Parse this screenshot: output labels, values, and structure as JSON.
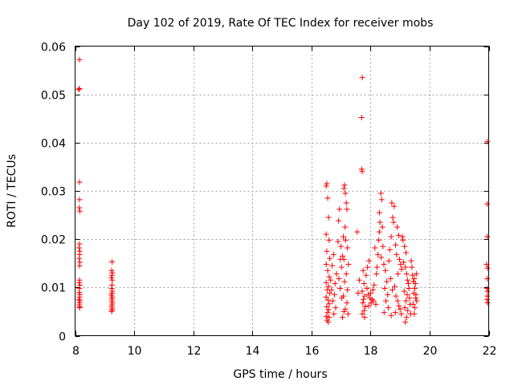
{
  "colors": {
    "marker": "#ff0000",
    "grid": "#a0a0a0",
    "axis": "#000000"
  },
  "chart_data": {
    "type": "scatter",
    "title": "Day 102 of 2019, Rate Of TEC Index for receiver mobs",
    "xlabel": "GPS time / hours",
    "ylabel": "ROTI / TECUs",
    "xlim": [
      8,
      22
    ],
    "ylim": [
      0,
      0.06
    ],
    "grid": true,
    "marker": "+",
    "xticks": [
      8,
      10,
      12,
      14,
      16,
      18,
      20,
      22
    ],
    "xtick_labels": [
      "8",
      "10",
      "12",
      "14",
      "16",
      "18",
      "20",
      "22"
    ],
    "yticks": [
      0,
      0.01,
      0.02,
      0.03,
      0.04,
      0.05,
      0.06
    ],
    "ytick_labels": [
      "0",
      "0.01",
      "0.02",
      "0.03",
      "0.04",
      "0.05",
      "0.06"
    ],
    "points": [
      [
        8.15,
        0.0572
      ],
      [
        8.15,
        0.0512
      ],
      [
        8.12,
        0.051
      ],
      [
        8.15,
        0.0318
      ],
      [
        8.15,
        0.0282
      ],
      [
        8.14,
        0.0265
      ],
      [
        8.16,
        0.0258
      ],
      [
        8.15,
        0.019
      ],
      [
        8.13,
        0.0182
      ],
      [
        8.16,
        0.0175
      ],
      [
        8.15,
        0.0168
      ],
      [
        8.14,
        0.016
      ],
      [
        8.16,
        0.0152
      ],
      [
        8.15,
        0.0145
      ],
      [
        8.15,
        0.0115
      ],
      [
        8.14,
        0.011
      ],
      [
        8.16,
        0.0105
      ],
      [
        8.15,
        0.0098
      ],
      [
        8.14,
        0.009
      ],
      [
        8.16,
        0.0085
      ],
      [
        8.15,
        0.008
      ],
      [
        8.13,
        0.0075
      ],
      [
        8.16,
        0.0072
      ],
      [
        8.15,
        0.0068
      ],
      [
        8.14,
        0.0064
      ],
      [
        8.16,
        0.006
      ],
      [
        8.15,
        0.0058
      ],
      [
        9.25,
        0.0153
      ],
      [
        9.24,
        0.0135
      ],
      [
        9.26,
        0.013
      ],
      [
        9.25,
        0.0125
      ],
      [
        9.23,
        0.012
      ],
      [
        9.26,
        0.0115
      ],
      [
        9.25,
        0.0105
      ],
      [
        9.24,
        0.0098
      ],
      [
        9.26,
        0.0092
      ],
      [
        9.25,
        0.0088
      ],
      [
        9.23,
        0.0084
      ],
      [
        9.26,
        0.008
      ],
      [
        9.25,
        0.0076
      ],
      [
        9.24,
        0.0072
      ],
      [
        9.26,
        0.0068
      ],
      [
        9.25,
        0.0064
      ],
      [
        9.24,
        0.006
      ],
      [
        9.26,
        0.0056
      ],
      [
        9.25,
        0.0053
      ],
      [
        9.24,
        0.005
      ],
      [
        16.5,
        0.031
      ],
      [
        16.52,
        0.0315
      ],
      [
        16.55,
        0.0285
      ],
      [
        16.58,
        0.0245
      ],
      [
        16.5,
        0.021
      ],
      [
        16.6,
        0.0198
      ],
      [
        16.52,
        0.0175
      ],
      [
        16.62,
        0.016
      ],
      [
        16.5,
        0.0148
      ],
      [
        16.55,
        0.0135
      ],
      [
        16.6,
        0.0122
      ],
      [
        16.5,
        0.011
      ],
      [
        16.58,
        0.0102
      ],
      [
        16.53,
        0.0095
      ],
      [
        16.62,
        0.0088
      ],
      [
        16.5,
        0.008
      ],
      [
        16.56,
        0.0074
      ],
      [
        16.6,
        0.0066
      ],
      [
        16.52,
        0.006
      ],
      [
        16.58,
        0.0054
      ],
      [
        16.55,
        0.0048
      ],
      [
        16.5,
        0.004
      ],
      [
        16.53,
        0.0032
      ],
      [
        16.57,
        0.0028
      ],
      [
        16.6,
        0.0038
      ],
      [
        16.65,
        0.0115
      ],
      [
        16.7,
        0.0145
      ],
      [
        16.75,
        0.0168
      ],
      [
        16.68,
        0.0095
      ],
      [
        16.72,
        0.0072
      ],
      [
        16.8,
        0.0108
      ],
      [
        16.85,
        0.0128
      ],
      [
        16.78,
        0.0085
      ],
      [
        16.82,
        0.0058
      ],
      [
        16.76,
        0.0045
      ],
      [
        16.9,
        0.0195
      ],
      [
        16.92,
        0.0238
      ],
      [
        16.95,
        0.0262
      ],
      [
        16.98,
        0.0158
      ],
      [
        16.93,
        0.0118
      ],
      [
        17.0,
        0.0185
      ],
      [
        17.02,
        0.0142
      ],
      [
        16.97,
        0.0098
      ],
      [
        17.05,
        0.0165
      ],
      [
        17.03,
        0.0078
      ],
      [
        17.08,
        0.0205
      ],
      [
        17.1,
        0.0305
      ],
      [
        17.12,
        0.0312
      ],
      [
        17.15,
        0.0295
      ],
      [
        17.18,
        0.0275
      ],
      [
        17.2,
        0.0262
      ],
      [
        17.14,
        0.0225
      ],
      [
        17.16,
        0.0198
      ],
      [
        17.22,
        0.0182
      ],
      [
        17.1,
        0.0158
      ],
      [
        17.25,
        0.0148
      ],
      [
        17.18,
        0.0128
      ],
      [
        17.12,
        0.0112
      ],
      [
        17.22,
        0.0095
      ],
      [
        17.08,
        0.0082
      ],
      [
        17.2,
        0.0068
      ],
      [
        17.15,
        0.0055
      ],
      [
        17.24,
        0.0045
      ],
      [
        17.05,
        0.0038
      ],
      [
        17.1,
        0.005
      ],
      [
        17.55,
        0.0215
      ],
      [
        17.62,
        0.0115
      ],
      [
        17.58,
        0.0088
      ],
      [
        17.72,
        0.0535
      ],
      [
        17.7,
        0.0452
      ],
      [
        17.7,
        0.0345
      ],
      [
        17.72,
        0.034
      ],
      [
        17.75,
        0.0135
      ],
      [
        17.78,
        0.0108
      ],
      [
        17.72,
        0.0092
      ],
      [
        17.8,
        0.0082
      ],
      [
        17.76,
        0.0075
      ],
      [
        17.74,
        0.0068
      ],
      [
        17.82,
        0.006
      ],
      [
        17.78,
        0.0052
      ],
      [
        17.72,
        0.0045
      ],
      [
        17.8,
        0.0038
      ],
      [
        17.85,
        0.0125
      ],
      [
        17.9,
        0.0142
      ],
      [
        17.95,
        0.0155
      ],
      [
        17.88,
        0.0098
      ],
      [
        17.92,
        0.0085
      ],
      [
        17.98,
        0.0078
      ],
      [
        18.02,
        0.0068
      ],
      [
        17.94,
        0.0062
      ],
      [
        18.05,
        0.0075
      ],
      [
        18.0,
        0.0088
      ],
      [
        18.08,
        0.0095
      ],
      [
        18.12,
        0.0105
      ],
      [
        18.15,
        0.0182
      ],
      [
        18.1,
        0.0072
      ],
      [
        18.18,
        0.0065
      ],
      [
        18.2,
        0.0128
      ],
      [
        18.22,
        0.0142
      ],
      [
        18.25,
        0.0168
      ],
      [
        18.28,
        0.0198
      ],
      [
        18.3,
        0.0215
      ],
      [
        18.32,
        0.0235
      ],
      [
        18.35,
        0.0295
      ],
      [
        18.38,
        0.0282
      ],
      [
        18.3,
        0.0255
      ],
      [
        18.4,
        0.0225
      ],
      [
        18.42,
        0.0185
      ],
      [
        18.36,
        0.0162
      ],
      [
        18.45,
        0.0148
      ],
      [
        18.5,
        0.0135
      ],
      [
        18.55,
        0.0112
      ],
      [
        18.48,
        0.0098
      ],
      [
        18.58,
        0.0085
      ],
      [
        18.52,
        0.0072
      ],
      [
        18.6,
        0.0058
      ],
      [
        18.46,
        0.0048
      ],
      [
        18.62,
        0.0155
      ],
      [
        18.65,
        0.0178
      ],
      [
        18.7,
        0.0205
      ],
      [
        18.75,
        0.0245
      ],
      [
        18.8,
        0.0268
      ],
      [
        18.72,
        0.0275
      ],
      [
        18.78,
        0.0235
      ],
      [
        18.85,
        0.0188
      ],
      [
        18.9,
        0.0225
      ],
      [
        18.95,
        0.0208
      ],
      [
        18.88,
        0.0168
      ],
      [
        18.98,
        0.0158
      ],
      [
        19.02,
        0.0148
      ],
      [
        18.93,
        0.0128
      ],
      [
        19.05,
        0.0138
      ],
      [
        18.68,
        0.0118
      ],
      [
        18.74,
        0.0095
      ],
      [
        18.82,
        0.0102
      ],
      [
        18.86,
        0.0082
      ],
      [
        18.92,
        0.0072
      ],
      [
        18.96,
        0.0062
      ],
      [
        19.0,
        0.0055
      ],
      [
        18.84,
        0.0048
      ],
      [
        19.04,
        0.0045
      ],
      [
        18.7,
        0.0042
      ],
      [
        19.08,
        0.0205
      ],
      [
        19.1,
        0.0198
      ],
      [
        19.15,
        0.0185
      ],
      [
        19.2,
        0.0172
      ],
      [
        19.12,
        0.0152
      ],
      [
        19.18,
        0.0142
      ],
      [
        19.22,
        0.0128
      ],
      [
        19.25,
        0.0115
      ],
      [
        19.28,
        0.0108
      ],
      [
        19.3,
        0.0098
      ],
      [
        19.14,
        0.0092
      ],
      [
        19.24,
        0.0085
      ],
      [
        19.32,
        0.0078
      ],
      [
        19.2,
        0.0072
      ],
      [
        19.34,
        0.0065
      ],
      [
        19.16,
        0.0058
      ],
      [
        19.26,
        0.0052
      ],
      [
        19.36,
        0.0045
      ],
      [
        19.22,
        0.0038
      ],
      [
        19.18,
        0.0028
      ],
      [
        19.38,
        0.0155
      ],
      [
        19.4,
        0.0142
      ],
      [
        19.42,
        0.0125
      ],
      [
        19.45,
        0.0112
      ],
      [
        19.48,
        0.0118
      ],
      [
        19.5,
        0.0098
      ],
      [
        19.52,
        0.0108
      ],
      [
        19.55,
        0.0128
      ],
      [
        19.46,
        0.0088
      ],
      [
        19.53,
        0.0078
      ],
      [
        19.44,
        0.0065
      ],
      [
        19.5,
        0.0058
      ],
      [
        19.56,
        0.0072
      ],
      [
        19.48,
        0.0045
      ],
      [
        19.54,
        0.0085
      ],
      [
        21.95,
        0.0402
      ],
      [
        21.95,
        0.0273
      ],
      [
        21.95,
        0.0205
      ],
      [
        21.93,
        0.0148
      ],
      [
        21.96,
        0.014
      ],
      [
        21.95,
        0.0118
      ],
      [
        21.94,
        0.0098
      ],
      [
        21.96,
        0.0092
      ],
      [
        21.95,
        0.0082
      ],
      [
        21.94,
        0.0075
      ],
      [
        21.96,
        0.0068
      ]
    ]
  }
}
